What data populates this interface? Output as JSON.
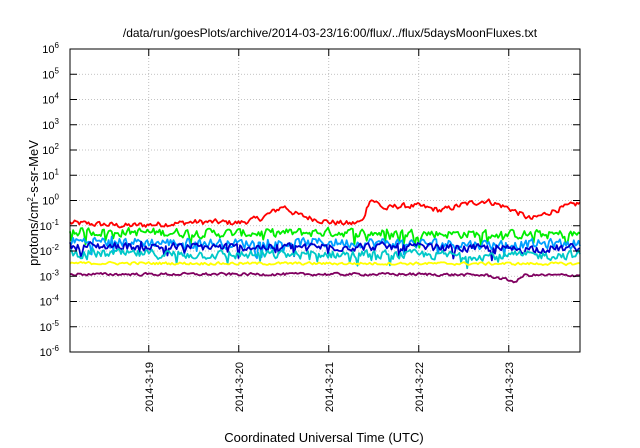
{
  "chart_data": {
    "type": "line",
    "title": "/data/run/goesPlots/archive/2014-03-23/16:00/flux/../flux/5daysMoonFluxes.txt",
    "xlabel": "Coordinated Universal Time (UTC)",
    "ylabel": "protons/cm²-s-sr-MeV",
    "ylabel_parts": {
      "pre": "protons/cm",
      "sup": "2",
      "post": "-s-sr-MeV"
    },
    "y_scale": "log",
    "ylim": [
      1e-06,
      1000000.0
    ],
    "y_ticks": [
      {
        "value": 1e-06,
        "base": "10",
        "exp": "-6"
      },
      {
        "value": 1e-05,
        "base": "10",
        "exp": "-5"
      },
      {
        "value": 0.0001,
        "base": "10",
        "exp": "-4"
      },
      {
        "value": 0.001,
        "base": "10",
        "exp": "-3"
      },
      {
        "value": 0.01,
        "base": "10",
        "exp": "-2"
      },
      {
        "value": 0.1,
        "base": "10",
        "exp": "-1"
      },
      {
        "value": 1,
        "base": "10",
        "exp": "0"
      },
      {
        "value": 10.0,
        "base": "10",
        "exp": "1"
      },
      {
        "value": 100.0,
        "base": "10",
        "exp": "2"
      },
      {
        "value": 1000.0,
        "base": "10",
        "exp": "3"
      },
      {
        "value": 10000.0,
        "base": "10",
        "exp": "4"
      },
      {
        "value": 100000.0,
        "base": "10",
        "exp": "5"
      },
      {
        "value": 1000000.0,
        "base": "10",
        "exp": "6"
      }
    ],
    "xlim": [
      "2014-03-18T03:00",
      "2014-03-23T19:00"
    ],
    "x_ticks": [
      {
        "value": "2014-03-19T00:00",
        "label": "2014-3-19"
      },
      {
        "value": "2014-03-20T00:00",
        "label": "2014-3-20"
      },
      {
        "value": "2014-03-21T00:00",
        "label": "2014-3-21"
      },
      {
        "value": "2014-03-22T00:00",
        "label": "2014-3-22"
      },
      {
        "value": "2014-03-23T00:00",
        "label": "2014-3-23"
      }
    ],
    "grid": true,
    "series": [
      {
        "color": "#ff0000",
        "noise": 0.1,
        "values": [
          [
            "2014-03-18T03:00",
            0.13
          ],
          [
            "2014-03-18T08:00",
            0.12
          ],
          [
            "2014-03-18T13:00",
            0.11
          ],
          [
            "2014-03-18T18:00",
            0.1
          ],
          [
            "2014-03-19T00:00",
            0.11
          ],
          [
            "2014-03-19T06:00",
            0.12
          ],
          [
            "2014-03-19T12:00",
            0.14
          ],
          [
            "2014-03-19T18:00",
            0.14
          ],
          [
            "2014-03-20T00:00",
            0.13
          ],
          [
            "2014-03-20T06:00",
            0.2
          ],
          [
            "2014-03-20T09:00",
            0.35
          ],
          [
            "2014-03-20T12:00",
            0.6
          ],
          [
            "2014-03-20T15:00",
            0.3
          ],
          [
            "2014-03-20T18:00",
            0.22
          ],
          [
            "2014-03-21T00:00",
            0.14
          ],
          [
            "2014-03-21T06:00",
            0.12
          ],
          [
            "2014-03-21T09:00",
            0.15
          ],
          [
            "2014-03-21T11:00",
            1.2
          ],
          [
            "2014-03-21T13:00",
            0.8
          ],
          [
            "2014-03-21T15:00",
            0.45
          ],
          [
            "2014-03-21T18:00",
            0.6
          ],
          [
            "2014-03-22T00:00",
            0.6
          ],
          [
            "2014-03-22T06:00",
            0.4
          ],
          [
            "2014-03-22T12:00",
            0.7
          ],
          [
            "2014-03-22T18:00",
            1.0
          ],
          [
            "2014-03-23T00:00",
            0.5
          ],
          [
            "2014-03-23T06:00",
            0.18
          ],
          [
            "2014-03-23T12:00",
            0.4
          ],
          [
            "2014-03-23T16:00",
            0.6
          ],
          [
            "2014-03-23T19:00",
            0.8
          ]
        ]
      },
      {
        "color": "#00ee00",
        "noise": 0.16,
        "values": [
          [
            "2014-03-18T03:00",
            0.06
          ],
          [
            "2014-03-19T00:00",
            0.055
          ],
          [
            "2014-03-20T00:00",
            0.05
          ],
          [
            "2014-03-21T00:00",
            0.055
          ],
          [
            "2014-03-22T00:00",
            0.05
          ],
          [
            "2014-03-23T00:00",
            0.045
          ],
          [
            "2014-03-23T19:00",
            0.045
          ]
        ]
      },
      {
        "color": "#00a0ff",
        "noise": 0.18,
        "values": [
          [
            "2014-03-18T03:00",
            0.025
          ],
          [
            "2014-03-19T00:00",
            0.022
          ],
          [
            "2014-03-20T00:00",
            0.02
          ],
          [
            "2014-03-21T00:00",
            0.022
          ],
          [
            "2014-03-22T00:00",
            0.02
          ],
          [
            "2014-03-23T00:00",
            0.018
          ],
          [
            "2014-03-23T19:00",
            0.02
          ]
        ]
      },
      {
        "color": "#0000cc",
        "noise": 0.15,
        "values": [
          [
            "2014-03-18T03:00",
            0.016
          ],
          [
            "2014-03-19T00:00",
            0.015
          ],
          [
            "2014-03-20T00:00",
            0.014
          ],
          [
            "2014-03-21T00:00",
            0.015
          ],
          [
            "2014-03-22T00:00",
            0.014
          ],
          [
            "2014-03-23T00:00",
            0.012
          ],
          [
            "2014-03-23T19:00",
            0.013
          ]
        ]
      },
      {
        "color": "#00c8c8",
        "noise": 0.16,
        "values": [
          [
            "2014-03-18T03:00",
            0.008
          ],
          [
            "2014-03-19T00:00",
            0.0075
          ],
          [
            "2014-03-20T00:00",
            0.007
          ],
          [
            "2014-03-21T00:00",
            0.0075
          ],
          [
            "2014-03-22T00:00",
            0.007
          ],
          [
            "2014-03-23T00:00",
            0.0065
          ],
          [
            "2014-03-23T19:00",
            0.007
          ]
        ]
      },
      {
        "color": "#ffff00",
        "noise": 0.05,
        "values": [
          [
            "2014-03-18T03:00",
            0.0033
          ],
          [
            "2014-03-20T00:00",
            0.0032
          ],
          [
            "2014-03-22T00:00",
            0.0032
          ],
          [
            "2014-03-23T19:00",
            0.0031
          ]
        ]
      },
      {
        "color": "#800060",
        "noise": 0.05,
        "values": [
          [
            "2014-03-18T03:00",
            0.0012
          ],
          [
            "2014-03-20T00:00",
            0.0012
          ],
          [
            "2014-03-22T00:00",
            0.0012
          ],
          [
            "2014-03-22T18:00",
            0.0011
          ],
          [
            "2014-03-23T02:00",
            0.0006
          ],
          [
            "2014-03-23T04:00",
            0.0011
          ],
          [
            "2014-03-23T19:00",
            0.0011
          ]
        ]
      }
    ]
  }
}
